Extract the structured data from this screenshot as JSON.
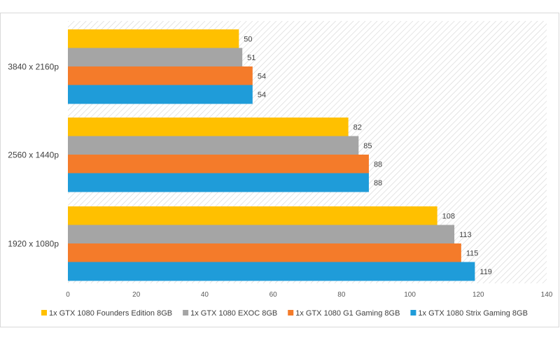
{
  "chart_data": {
    "type": "bar",
    "orientation": "horizontal",
    "categories": [
      "3840 x 2160p",
      "2560 x 1440p",
      "1920 x 1080p"
    ],
    "series": [
      {
        "name": "1x GTX 1080 Founders Edition 8GB",
        "color": "#FFC000",
        "values": [
          50,
          82,
          108
        ]
      },
      {
        "name": "1x GTX 1080 EXOC 8GB",
        "color": "#A5A5A5",
        "values": [
          51,
          85,
          113
        ]
      },
      {
        "name": "1x GTX 1080 G1 Gaming 8GB",
        "color": "#F47B2A",
        "values": [
          54,
          88,
          115
        ]
      },
      {
        "name": "1x GTX 1080 Strix Gaming 8GB",
        "color": "#1F9CD9",
        "values": [
          54,
          88,
          119
        ]
      }
    ],
    "xlim": [
      0,
      140
    ],
    "x_ticks": [
      "0",
      "20",
      "40",
      "60",
      "80",
      "100",
      "120",
      "140"
    ],
    "title": "",
    "xlabel": "",
    "ylabel": "",
    "legend_position": "bottom",
    "grid": false,
    "plot_background": "hatched"
  }
}
